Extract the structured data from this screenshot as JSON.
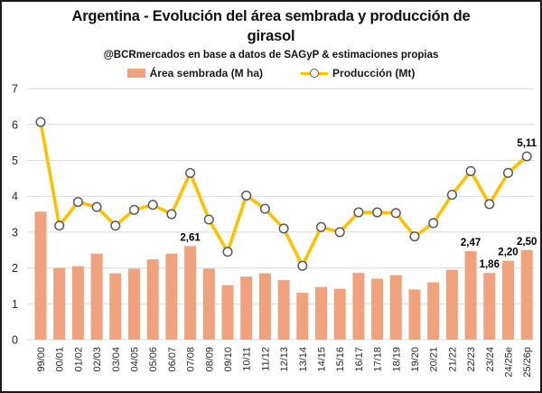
{
  "header": {
    "title": "Argentina - Evolución del área sembrada y producción de girasol",
    "subtitle": "@BCRmercados en base a datos de SAGyP & estimaciones propias"
  },
  "legend": {
    "bar_label": "Área sembrada (M ha)",
    "line_label": "Producción (Mt)"
  },
  "colors": {
    "bar": "#f0a27d",
    "line": "#ffc000",
    "marker_fill": "#ffffff",
    "marker_stroke": "#595959",
    "grid": "#d9d9d9",
    "axis_text": "#262626",
    "value_label_text": "#000000"
  },
  "chart_data": {
    "type": "combo",
    "title": "Argentina - Evolución del área sembrada y producción de girasol",
    "subtitle": "@BCRmercados en base a datos de SAGyP & estimaciones propias",
    "categories": [
      "99/00",
      "00/01",
      "01/02",
      "02/03",
      "03/04",
      "04/05",
      "05/06",
      "06/07",
      "07/08",
      "08/09",
      "09/10",
      "10/11",
      "11/12",
      "12/13",
      "13/14",
      "14/15",
      "15/16",
      "16/17",
      "17/18",
      "18/19",
      "19/20",
      "20/21",
      "21/22",
      "22/23",
      "23/24",
      "24/25e",
      "25/26p"
    ],
    "series": [
      {
        "name": "Área sembrada (M ha)",
        "type": "bar",
        "values": [
          3.57,
          2.0,
          2.05,
          2.4,
          1.85,
          1.98,
          2.24,
          2.4,
          2.61,
          1.98,
          1.52,
          1.76,
          1.85,
          1.66,
          1.31,
          1.47,
          1.42,
          1.86,
          1.7,
          1.8,
          1.4,
          1.6,
          1.95,
          2.47,
          1.86,
          2.2,
          2.5
        ],
        "point_labels": {
          "8": "2,61",
          "23": "2,47",
          "24": "1,86",
          "25": "2,20",
          "26": "2,50"
        }
      },
      {
        "name": "Producción (Mt)",
        "type": "line",
        "values": [
          6.07,
          3.18,
          3.84,
          3.7,
          3.18,
          3.62,
          3.76,
          3.5,
          4.65,
          3.35,
          2.45,
          4.02,
          3.65,
          3.1,
          2.06,
          3.14,
          3.0,
          3.55,
          3.55,
          3.53,
          2.88,
          3.25,
          4.04,
          4.7,
          3.78,
          4.65,
          5.11
        ],
        "point_labels": {
          "26": "5,11"
        }
      }
    ],
    "ylim": [
      0,
      7
    ],
    "yticks": [
      0,
      1,
      2,
      3,
      4,
      5,
      6,
      7
    ],
    "grid": "horizontal",
    "legend_position": "top",
    "x_tick_rotation": -90,
    "decimal_separator": ","
  }
}
